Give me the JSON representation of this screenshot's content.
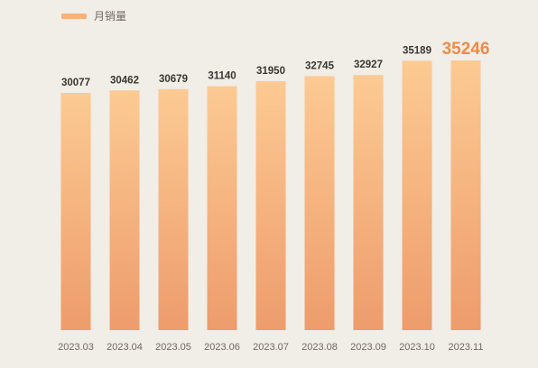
{
  "chart_data": {
    "type": "bar",
    "categories": [
      "2023.03",
      "2023.04",
      "2023.05",
      "2023.06",
      "2023.07",
      "2023.08",
      "2023.09",
      "2023.10",
      "2023.11"
    ],
    "series": [
      {
        "name": "月销量",
        "values": [
          30077,
          30462,
          30679,
          31140,
          31950,
          32745,
          32927,
          35189,
          35246
        ]
      }
    ],
    "highlight_index": 8,
    "legend_position": "top-left",
    "grid": false,
    "colors": {
      "background": "#f1ede7",
      "bar_top": "#fcca93",
      "bar_bottom": "#ee9c6c",
      "highlight_label": "#ec8b4a",
      "label": "#3a3733",
      "tick": "#6f6a63"
    }
  }
}
